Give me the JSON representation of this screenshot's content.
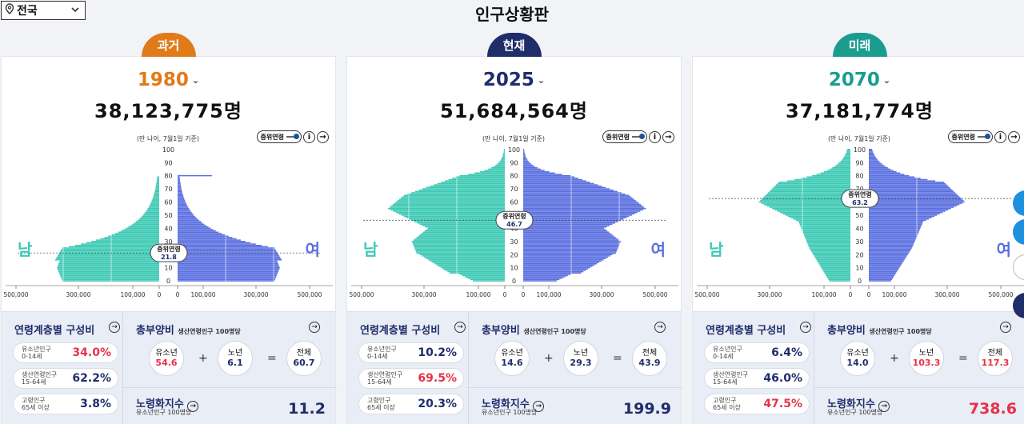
{
  "region": {
    "label": "전국"
  },
  "title": "인구상황판",
  "tick_labels": [
    "500,000",
    "300,000",
    "100,000",
    "0",
    "0",
    "100,000",
    "300,000",
    "500,000"
  ],
  "age_ticks": [
    "100",
    "90",
    "80",
    "70",
    "60",
    "50",
    "40",
    "30",
    "20",
    "10",
    "0"
  ],
  "chart_note": "(만 나이, 7월1일 기준)",
  "toggle_label": "중위연령",
  "male_label": "남",
  "female_label": "여",
  "median_label": "중위연령",
  "composition_title": "연령계층별 구성비",
  "dependency_title": "총부양비",
  "dependency_sub": "생산연령인구 100명당",
  "youth_label": "유소년",
  "elderly_label": "노년",
  "total_label": "전체",
  "aging_title": "노령화지수",
  "aging_sub": "유소년인구 100명당",
  "rows": [
    {
      "l1": "유소년인구",
      "l2": "0-14세"
    },
    {
      "l1": "생산연령인구",
      "l2": "15-64세"
    },
    {
      "l1": "고령인구",
      "l2": "65세 이상"
    }
  ],
  "panels": [
    {
      "tab": "과거",
      "color": "#e07b1a",
      "year": "1980",
      "year_color": "#e07b1a",
      "population": "38,123,775명",
      "median": "21.8",
      "median_age": 21.8,
      "comp": [
        "34.0%",
        "62.2%",
        "3.8%"
      ],
      "comp_red": [
        true,
        false,
        false
      ],
      "youth": "54.6",
      "elderly": "6.1",
      "total": "60.7",
      "youth_red": true,
      "elderly_red": false,
      "total_red": false,
      "aging": "11.2",
      "aging_red": false,
      "shape": "past"
    },
    {
      "tab": "현재",
      "color": "#1f2d6b",
      "year": "2025",
      "year_color": "#1f2d6b",
      "population": "51,684,564명",
      "median": "46.7",
      "median_age": 46.7,
      "comp": [
        "10.2%",
        "69.5%",
        "20.3%"
      ],
      "comp_red": [
        false,
        true,
        false
      ],
      "youth": "14.6",
      "elderly": "29.3",
      "total": "43.9",
      "youth_red": false,
      "elderly_red": false,
      "total_red": false,
      "aging": "199.9",
      "aging_red": false,
      "shape": "now"
    },
    {
      "tab": "미래",
      "color": "#1a9d8f",
      "year": "2070",
      "year_color": "#1a9d8f",
      "population": "37,181,774명",
      "median": "63.2",
      "median_age": 63.2,
      "comp": [
        "6.4%",
        "46.0%",
        "47.5%"
      ],
      "comp_red": [
        false,
        false,
        true
      ],
      "youth": "14.0",
      "elderly": "103.3",
      "total": "117.3",
      "youth_red": false,
      "elderly_red": true,
      "total_red": true,
      "aging": "738.6",
      "aging_red": true,
      "shape": "future"
    }
  ]
}
